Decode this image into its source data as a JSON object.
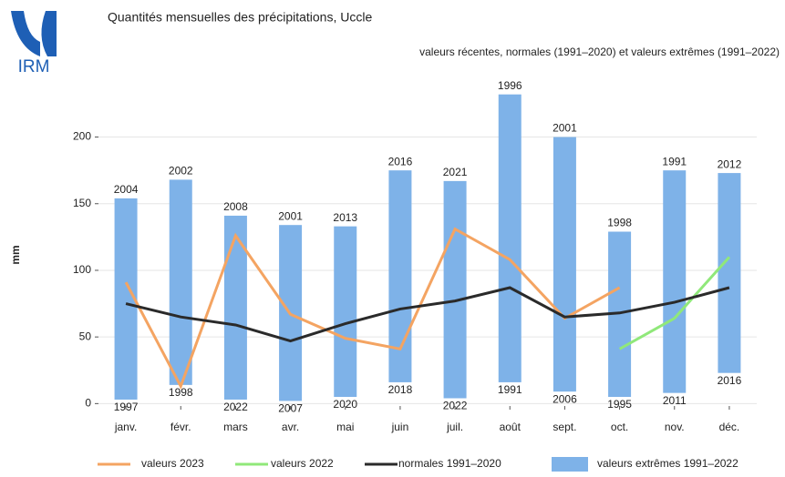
{
  "logo": {
    "text": "IRM"
  },
  "chart_data": {
    "type": "floating-bar-line",
    "title": "Quantités mensuelles des précipitations, Uccle",
    "subtitle": "valeurs récentes, normales (1991–2020) et valeurs extrêmes (1991–2022)",
    "y_label": "mm",
    "categories": [
      "janv.",
      "févr.",
      "mars",
      "avr.",
      "mai",
      "juin",
      "juil.",
      "août",
      "sept.",
      "oct.",
      "nov.",
      "déc."
    ],
    "ylim": [
      -10,
      240
    ],
    "yticks": [
      0,
      50,
      100,
      150,
      200
    ],
    "grid": true,
    "extremes": {
      "name": "valeurs extrêmes 1991–2022",
      "color": "#7eb2e8",
      "max": [
        154,
        168,
        141,
        134,
        133,
        175,
        167,
        232,
        200,
        129,
        175,
        173
      ],
      "min": [
        3,
        14,
        3,
        2,
        5,
        16,
        4,
        16,
        9,
        5,
        8,
        23
      ],
      "max_years": [
        2004,
        2002,
        2008,
        2001,
        2013,
        2016,
        2021,
        1996,
        2001,
        1998,
        1991,
        2012
      ],
      "min_years": [
        1997,
        1998,
        2022,
        2007,
        2020,
        2018,
        2022,
        1991,
        2006,
        1995,
        2011,
        2016
      ]
    },
    "series": [
      {
        "name": "valeurs 2023",
        "color": "#f4a462",
        "values": [
          91,
          13,
          126,
          67,
          49,
          41,
          131,
          108,
          64,
          87,
          null,
          null
        ]
      },
      {
        "name": "valeurs 2022",
        "color": "#90e87a",
        "values": [
          null,
          null,
          null,
          null,
          null,
          null,
          null,
          null,
          null,
          41,
          64,
          110
        ]
      },
      {
        "name": "normales 1991–2020",
        "color": "#2a2a2a",
        "values": [
          75,
          65,
          59,
          47,
          60,
          71,
          77,
          87,
          65,
          68,
          76,
          87
        ]
      }
    ]
  }
}
